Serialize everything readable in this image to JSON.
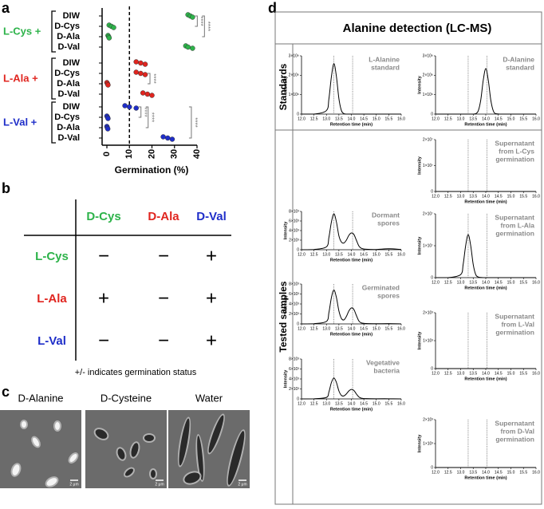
{
  "panel_a": {
    "label": "a",
    "chart_data": {
      "type": "dot",
      "xlabel": "Germination (%)",
      "xlim": [
        0,
        40
      ],
      "xticks": [
        0,
        10,
        20,
        30,
        40
      ],
      "threshold": 10,
      "groups": [
        {
          "name": "L-Cys +",
          "color": "#2db34a",
          "categories": [
            "DIW",
            "D-Cys",
            "D-Ala",
            "D-Val"
          ],
          "values": [
            [
              36,
              37,
              38
            ],
            [
              1,
              2,
              3
            ],
            [
              0.5,
              0.8,
              1
            ],
            [
              35,
              36,
              38
            ]
          ],
          "significance": [
            {
              "rows": [
                0,
                1
              ],
              "label": "****"
            },
            {
              "rows": [
                0,
                2
              ],
              "label": "****"
            }
          ]
        },
        {
          "name": "L-Ala +",
          "color": "#e0251f",
          "categories": [
            "DIW",
            "D-Cys",
            "D-Ala",
            "D-Val"
          ],
          "values": [
            [
              13,
              15,
              17
            ],
            [
              13,
              15,
              17
            ],
            [
              0,
              0.3,
              0.5
            ],
            [
              16,
              18,
              20
            ]
          ],
          "significance": [
            {
              "rows": [
                1,
                2
              ],
              "label": "****"
            }
          ]
        },
        {
          "name": "L-Val +",
          "color": "#1f2ec9",
          "categories": [
            "DIW",
            "D-Cys",
            "D-Ala",
            "D-Val"
          ],
          "values": [
            [
              8,
              10,
              13
            ],
            [
              0,
              0.3,
              0.5
            ],
            [
              0,
              0.2,
              0.4
            ],
            [
              25,
              27,
              29
            ]
          ],
          "significance": [
            {
              "rows": [
                0,
                1
              ],
              "label": "****"
            },
            {
              "rows": [
                0,
                2
              ],
              "label": "****"
            },
            {
              "rows": [
                0,
                3
              ],
              "label": "****"
            }
          ]
        }
      ]
    }
  },
  "panel_b": {
    "label": "b",
    "columns": [
      "D-Cys",
      "D-Ala",
      "D-Val"
    ],
    "column_colors": [
      "#2db34a",
      "#e0251f",
      "#1f2ec9"
    ],
    "rows": [
      {
        "name": "L-Cys",
        "color": "#2db34a",
        "cells": [
          "−",
          "−",
          "+"
        ]
      },
      {
        "name": "L-Ala",
        "color": "#e0251f",
        "cells": [
          "+",
          "−",
          "+"
        ]
      },
      {
        "name": "L-Val",
        "color": "#1f2ec9",
        "cells": [
          "−",
          "−",
          "+"
        ]
      }
    ],
    "caption": "+/- indicates germination status"
  },
  "panel_c": {
    "label": "c",
    "images": [
      {
        "caption": "D-Alanine",
        "scale_bar": "2 μm"
      },
      {
        "caption": "D-Cysteine",
        "scale_bar": "2 μm"
      },
      {
        "caption": "Water",
        "scale_bar": "2 μm"
      }
    ]
  },
  "panel_d": {
    "label": "d",
    "title": "Alanine detection (LC-MS)",
    "rows": [
      "Standards",
      "Tested samples"
    ],
    "axis": {
      "x": [
        12,
        12.5,
        13,
        13.1,
        13.2,
        13.3,
        13.4,
        13.5,
        13.6,
        13.7,
        13.8,
        13.9,
        14,
        14.1,
        14.2,
        14.3,
        14.4,
        14.6,
        15,
        15.5,
        16
      ],
      "xlabel": "Retention time (min)",
      "ylabel": "Intensity",
      "xlim": [
        12,
        16
      ],
      "xticks": [
        {
          "value": 12,
          "label": "12.0"
        },
        12.5,
        {
          "value": 13,
          "label": "13.0"
        },
        13.5,
        {
          "value": 14,
          "label": "14.0"
        },
        14.5,
        {
          "value": 15,
          "label": "15.0"
        },
        15.5,
        {
          "value": 16,
          "label": "16.0"
        }
      ],
      "vlines": [
        13.3,
        14.05
      ]
    },
    "chart_data": [
      {
        "type": "line",
        "name": [
          "L-Alanine",
          "standard"
        ],
        "ylim": [
          0,
          3000000
        ],
        "yticks": [
          0,
          {
            "value": 1000000,
            "label": "1×10⁶"
          },
          {
            "value": 2000000,
            "label": "2×10⁶"
          },
          {
            "value": 3000000,
            "label": "3×10⁶"
          }
        ],
        "values": [
          0,
          0,
          182000,
          796000,
          1934000,
          2600000,
          1934000,
          796000,
          182000,
          23000,
          0,
          0,
          0,
          0,
          0,
          0,
          0,
          0,
          0,
          0,
          0
        ]
      },
      {
        "type": "line",
        "name": [
          "D-Alanine",
          "standard"
        ],
        "ylim": [
          0,
          3000000
        ],
        "yticks": [
          0,
          {
            "value": 1000000,
            "label": "1×10⁶"
          },
          {
            "value": 2000000,
            "label": "2×10⁶"
          },
          {
            "value": 3000000,
            "label": "3×10⁶"
          }
        ],
        "values": [
          0,
          0,
          0,
          0,
          0,
          0,
          0,
          0,
          21000,
          164000,
          719000,
          1748000,
          2350000,
          1748000,
          719000,
          164000,
          21000,
          0,
          0,
          0,
          0
        ]
      },
      {
        "type": "line",
        "name": [
          "Dormant",
          "spores"
        ],
        "ylim": [
          0,
          8000
        ],
        "yticks": [
          0,
          {
            "value": 2000,
            "label": "2×10³"
          },
          {
            "value": 4000,
            "label": "4×10³"
          },
          {
            "value": 6000,
            "label": "6×10³"
          },
          {
            "value": 8000,
            "label": "8×10³"
          }
        ],
        "values": [
          0,
          50,
          600,
          2600,
          5800,
          7500,
          5800,
          2900,
          1600,
          1400,
          2000,
          3000,
          3500,
          3200,
          2000,
          800,
          300,
          100,
          50,
          200,
          50
        ]
      },
      {
        "type": "line",
        "name": [
          "Supernatant",
          "from L-Cys",
          "germination"
        ],
        "ylim": [
          0,
          20000000
        ],
        "yticks": [
          0,
          {
            "value": 10000000,
            "label": "1×10⁷"
          },
          {
            "value": 20000000,
            "label": "2×10⁷"
          }
        ],
        "values": [
          0,
          0,
          0,
          0,
          0,
          0,
          0,
          0,
          0,
          0,
          0,
          0,
          0,
          0,
          0,
          0,
          0,
          0,
          0,
          0,
          0
        ]
      },
      {
        "type": "line",
        "name": [
          "Germinated",
          "spores"
        ],
        "ylim": [
          0,
          8000
        ],
        "yticks": [
          0,
          {
            "value": 2000,
            "label": "2×10³"
          },
          {
            "value": 4000,
            "label": "4×10³"
          },
          {
            "value": 6000,
            "label": "6×10³"
          },
          {
            "value": 8000,
            "label": "8×10³"
          }
        ],
        "values": [
          0,
          50,
          500,
          2300,
          5300,
          6800,
          5300,
          2600,
          1100,
          800,
          1500,
          2600,
          3200,
          2900,
          1700,
          600,
          200,
          80,
          40,
          60,
          0
        ]
      },
      {
        "type": "line",
        "name": [
          "Supernatant",
          "from L-Ala",
          "germination"
        ],
        "ylim": [
          0,
          20000000
        ],
        "yticks": [
          0,
          {
            "value": 10000000,
            "label": "1×10⁷"
          },
          {
            "value": 20000000,
            "label": "2×10⁷"
          }
        ],
        "values": [
          0,
          0,
          945000,
          4133000,
          10044000,
          13500000,
          10044000,
          4133000,
          945000,
          200000,
          50000,
          0,
          0,
          0,
          0,
          0,
          0,
          0,
          0,
          0,
          0
        ]
      },
      {
        "type": "line",
        "name": [
          "Vegetative",
          "bacteria"
        ],
        "ylim": [
          0,
          8000
        ],
        "yticks": [
          0,
          {
            "value": 2000,
            "label": "2×10³"
          },
          {
            "value": 4000,
            "label": "4×10³"
          },
          {
            "value": 6000,
            "label": "6×10³"
          },
          {
            "value": 8000,
            "label": "8×10³"
          }
        ],
        "values": [
          0,
          30,
          300,
          1400,
          3300,
          4200,
          3300,
          1600,
          700,
          600,
          1000,
          1600,
          1900,
          1700,
          1000,
          400,
          150,
          60,
          30,
          30,
          0
        ]
      },
      {
        "type": "line",
        "name": [
          "Supernatant",
          "from L-Val",
          "germination"
        ],
        "ylim": [
          0,
          2000
        ],
        "yticks": [
          0,
          {
            "value": 1000,
            "label": "1×10³"
          },
          {
            "value": 2000,
            "label": "2×10³"
          }
        ],
        "values": [
          0,
          0,
          0,
          0,
          0,
          0,
          0,
          0,
          0,
          0,
          0,
          0,
          0,
          0,
          0,
          0,
          0,
          0,
          0,
          0,
          0
        ]
      },
      {
        "type": "line",
        "name": [
          "Supernatant",
          "from D-Val",
          "germination"
        ],
        "ylim": [
          0,
          2000
        ],
        "yticks": [
          0,
          {
            "value": 1000,
            "label": "1×10³"
          },
          {
            "value": 2000,
            "label": "2×10³"
          }
        ],
        "values": [
          0,
          0,
          0,
          0,
          0,
          0,
          0,
          0,
          0,
          0,
          0,
          0,
          0,
          0,
          0,
          0,
          0,
          0,
          0,
          0,
          0
        ]
      }
    ]
  }
}
